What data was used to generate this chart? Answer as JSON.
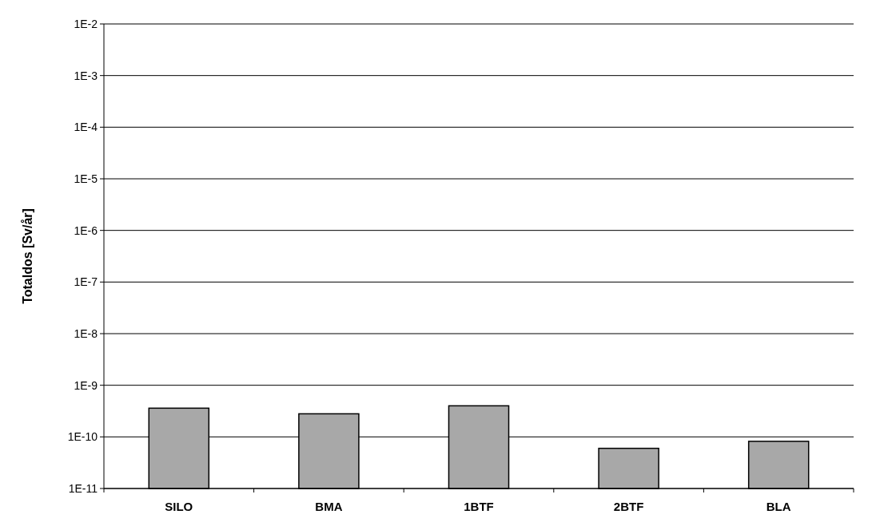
{
  "chart_data": {
    "type": "bar",
    "ylabel": "Totaldos [Sv/år]",
    "categories": [
      "SILO",
      "BMA",
      "1BTF",
      "2BTF",
      "BLA"
    ],
    "values": [
      3.6e-10,
      2.8e-10,
      4e-10,
      6e-11,
      8.2e-11
    ],
    "color": "#a8a8a8",
    "log": true,
    "ylim": [
      1e-11,
      0.01
    ],
    "yticks": [
      {
        "value": 1e-11,
        "label": "1E-11"
      },
      {
        "value": 1e-10,
        "label": "1E-10"
      },
      {
        "value": 1e-09,
        "label": "1E-9"
      },
      {
        "value": 1e-08,
        "label": "1E-8"
      },
      {
        "value": 1e-07,
        "label": "1E-7"
      },
      {
        "value": 1e-06,
        "label": "1E-6"
      },
      {
        "value": 1e-05,
        "label": "1E-5"
      },
      {
        "value": 0.0001,
        "label": "1E-4"
      },
      {
        "value": 0.001,
        "label": "1E-3"
      },
      {
        "value": 0.01,
        "label": "1E-2"
      }
    ],
    "grid": "y"
  }
}
